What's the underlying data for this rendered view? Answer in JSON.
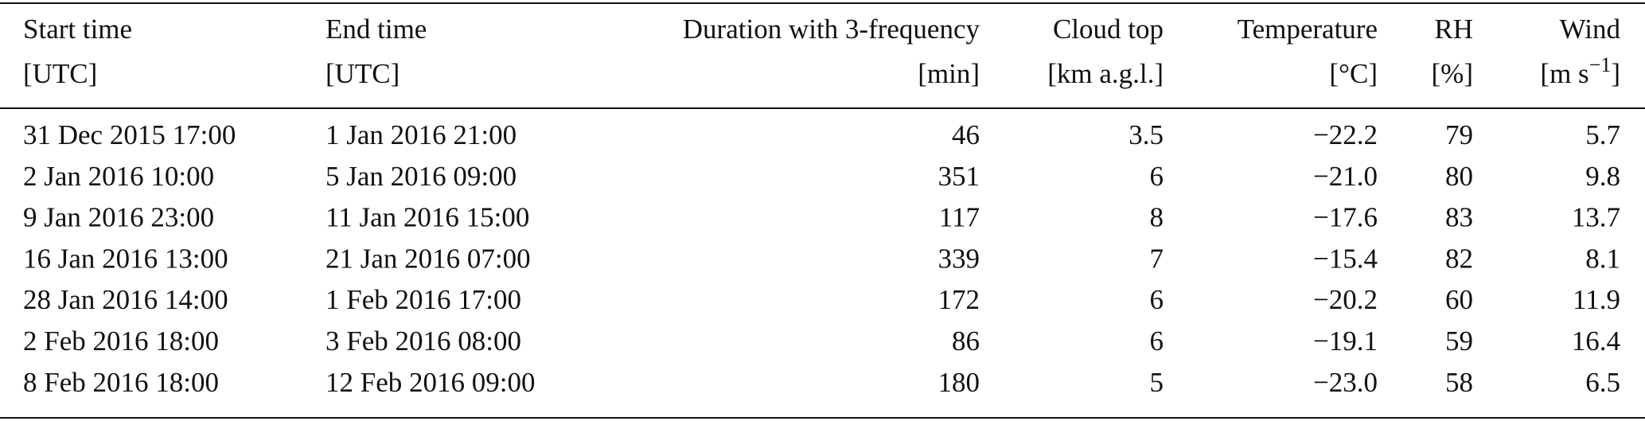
{
  "table": {
    "header": [
      {
        "name": "Start time",
        "unit": "[UTC]"
      },
      {
        "name": "End time",
        "unit": "[UTC]"
      },
      {
        "name": "Duration with 3-frequency",
        "unit": "[min]"
      },
      {
        "name": "Cloud top",
        "unit": "[km a.g.l.]"
      },
      {
        "name": "Temperature",
        "unit": "[°C]"
      },
      {
        "name": "RH",
        "unit": "[%]"
      },
      {
        "name": "Wind",
        "unit": "[m s",
        "unit_superscript": "−1",
        "unit_close": "]"
      }
    ],
    "rows": [
      [
        "31 Dec 2015 17:00",
        "1 Jan 2016 21:00",
        "46",
        "3.5",
        "−22.2",
        "79",
        "5.7"
      ],
      [
        "2 Jan 2016 10:00",
        "5 Jan 2016 09:00",
        "351",
        "6",
        "−21.0",
        "80",
        "9.8"
      ],
      [
        "9 Jan 2016 23:00",
        "11 Jan 2016 15:00",
        "117",
        "8",
        "−17.6",
        "83",
        "13.7"
      ],
      [
        "16 Jan 2016 13:00",
        "21 Jan 2016 07:00",
        "339",
        "7",
        "−15.4",
        "82",
        "8.1"
      ],
      [
        "28 Jan 2016 14:00",
        "1 Feb 2016 17:00",
        "172",
        "6",
        "−20.2",
        "60",
        "11.9"
      ],
      [
        "2 Feb 2016 18:00",
        "3 Feb 2016 08:00",
        "86",
        "6",
        "−19.1",
        "59",
        "16.4"
      ],
      [
        "8 Feb 2016 18:00",
        "12 Feb 2016 09:00",
        "180",
        "5",
        "−23.0",
        "58",
        "6.5"
      ]
    ]
  }
}
